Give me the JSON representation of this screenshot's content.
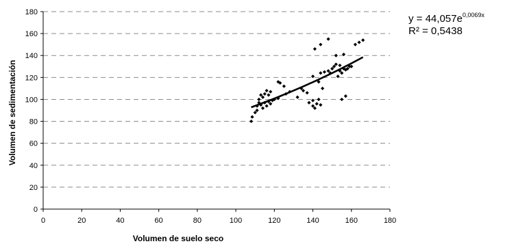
{
  "chart_data": {
    "type": "scatter",
    "title": "",
    "xlabel": "Volumen de suelo seco",
    "ylabel": "Volumen de sedimentación",
    "xlim": [
      0,
      180
    ],
    "ylim": [
      0,
      180
    ],
    "xticks": [
      0,
      20,
      40,
      60,
      80,
      100,
      120,
      140,
      160,
      180
    ],
    "yticks": [
      0,
      20,
      40,
      60,
      80,
      100,
      120,
      140,
      160,
      180
    ],
    "grid": "horizontal dashed",
    "marker": "diamond",
    "color": "#000000",
    "points": [
      [
        108,
        80
      ],
      [
        108.5,
        84
      ],
      [
        110,
        88
      ],
      [
        111,
        90
      ],
      [
        111,
        94
      ],
      [
        112,
        97
      ],
      [
        112,
        100
      ],
      [
        113,
        95
      ],
      [
        113,
        104
      ],
      [
        114,
        92
      ],
      [
        114,
        102
      ],
      [
        115,
        97
      ],
      [
        115,
        105
      ],
      [
        116,
        94
      ],
      [
        116,
        108
      ],
      [
        117,
        98
      ],
      [
        117,
        104
      ],
      [
        118,
        96
      ],
      [
        118,
        107
      ],
      [
        119,
        99
      ],
      [
        120,
        100
      ],
      [
        122,
        101
      ],
      [
        122,
        116
      ],
      [
        123,
        115
      ],
      [
        125,
        112
      ],
      [
        126,
        105
      ],
      [
        128,
        107
      ],
      [
        132,
        102
      ],
      [
        134,
        110
      ],
      [
        135,
        108
      ],
      [
        137,
        106
      ],
      [
        138,
        97
      ],
      [
        140,
        94
      ],
      [
        140,
        99
      ],
      [
        140,
        121
      ],
      [
        141,
        92
      ],
      [
        141,
        146
      ],
      [
        142,
        96
      ],
      [
        143,
        100
      ],
      [
        143,
        116
      ],
      [
        144,
        95
      ],
      [
        144,
        124
      ],
      [
        144,
        150
      ],
      [
        145,
        110
      ],
      [
        146,
        125
      ],
      [
        148,
        126
      ],
      [
        148,
        155
      ],
      [
        149,
        124
      ],
      [
        150,
        128
      ],
      [
        151,
        130
      ],
      [
        152,
        132
      ],
      [
        152,
        140
      ],
      [
        153,
        121
      ],
      [
        154,
        126
      ],
      [
        154,
        131
      ],
      [
        155,
        100
      ],
      [
        155,
        124
      ],
      [
        156,
        141
      ],
      [
        156,
        128
      ],
      [
        157,
        103
      ],
      [
        157,
        127
      ],
      [
        158,
        128
      ],
      [
        159,
        130
      ],
      [
        160,
        130
      ],
      [
        162,
        150
      ],
      [
        164,
        152
      ],
      [
        166,
        154
      ]
    ],
    "trendline": {
      "type": "exponential",
      "a": 44.057,
      "b": 0.0069,
      "x_range": [
        108,
        166
      ],
      "equation_text": "y = 44,057e",
      "equation_exponent": "0,0069x",
      "r2_text": "R² = 0,5438"
    }
  }
}
